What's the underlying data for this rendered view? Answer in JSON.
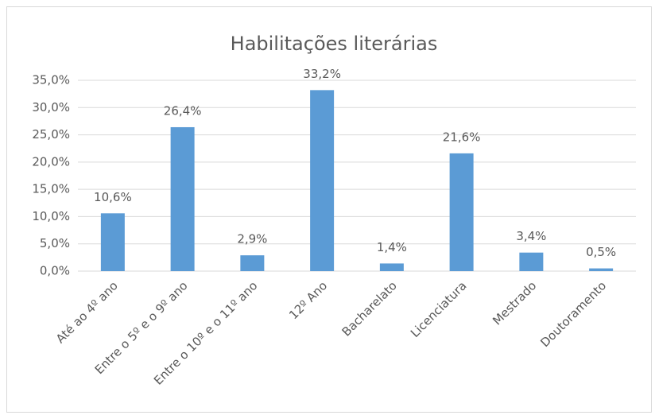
{
  "chart_data": {
    "type": "bar",
    "title": "Habilitações literárias",
    "categories": [
      "Até ao 4º ano",
      "Entre o 5º e o 9º ano",
      "Entre o 10º e o 11º ano",
      "12º Ano",
      "Bacharelato",
      "Licenciatura",
      "Mestrado",
      "Doutoramento"
    ],
    "values": [
      10.6,
      26.4,
      2.9,
      33.2,
      1.4,
      21.6,
      3.4,
      0.5
    ],
    "value_labels": [
      "10,6%",
      "26,4%",
      "2,9%",
      "33,2%",
      "1,4%",
      "21,6%",
      "3,4%",
      "0,5%"
    ],
    "color": "#5b9bd5",
    "ylim": [
      0,
      35
    ],
    "yticks": [
      {
        "value": 0,
        "label": "0,0%"
      },
      {
        "value": 5,
        "label": "5,0%"
      },
      {
        "value": 10,
        "label": "10,0%"
      },
      {
        "value": 15,
        "label": "15,0%"
      },
      {
        "value": 20,
        "label": "20,0%"
      },
      {
        "value": 25,
        "label": "25,0%"
      },
      {
        "value": 30,
        "label": "30,0%"
      },
      {
        "value": 35,
        "label": "35,0%"
      }
    ],
    "grid": true
  }
}
